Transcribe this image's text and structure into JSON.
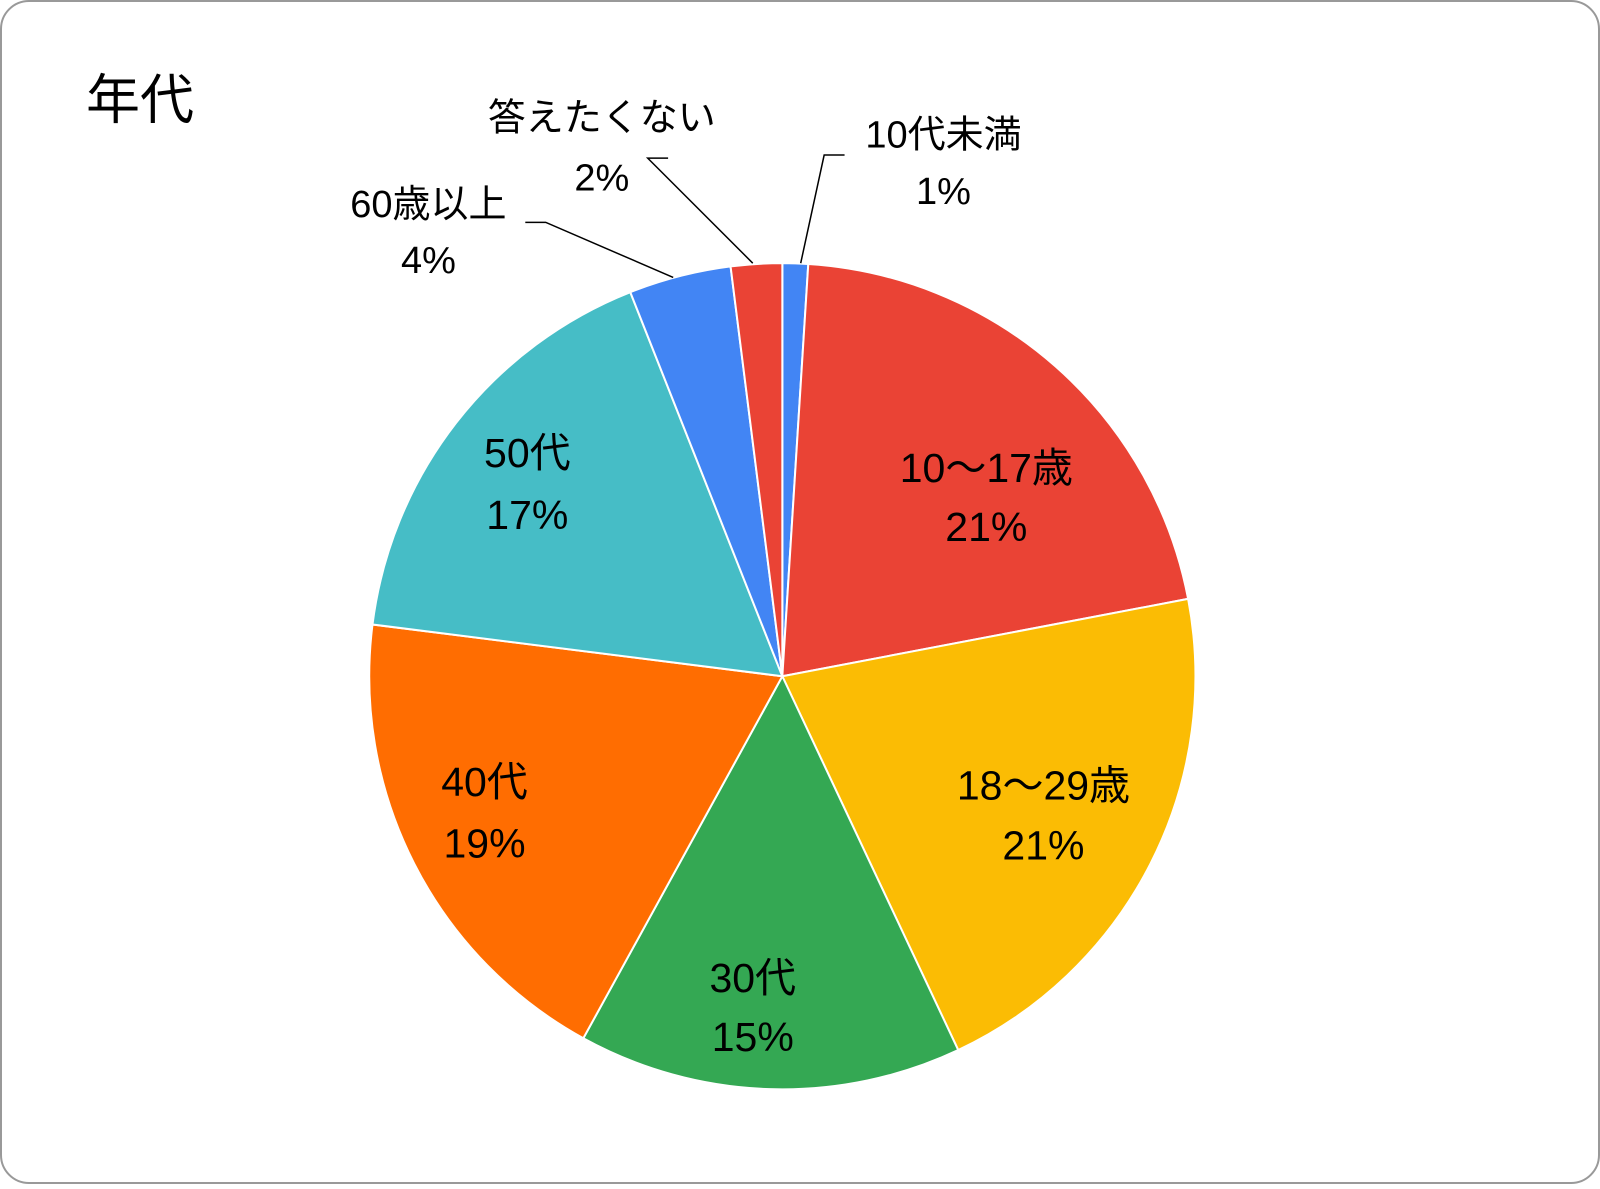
{
  "chart_data": {
    "type": "pie",
    "title": "年代",
    "categories": [
      "10代未満",
      "10〜17歳",
      "18〜29歳",
      "30代",
      "40代",
      "50代",
      "60歳以上",
      "答えたくない"
    ],
    "values": [
      1,
      21,
      21,
      15,
      19,
      17,
      4,
      2
    ],
    "value_labels": [
      "1%",
      "21%",
      "21%",
      "15%",
      "19%",
      "17%",
      "4%",
      "2%"
    ],
    "colors": [
      "#4285f4",
      "#ea4335",
      "#fbbc04",
      "#34a853",
      "#ff6d01",
      "#46bdc6",
      "#4285f4",
      "#ea4335"
    ]
  }
}
